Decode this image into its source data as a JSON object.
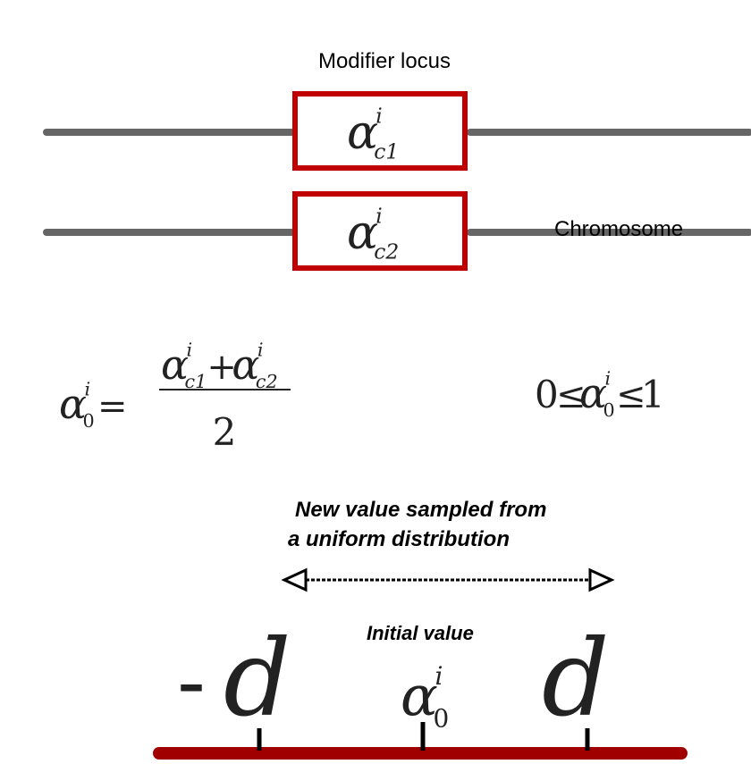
{
  "labels": {
    "modifier_locus": "Modifier locus",
    "chromosome": "Chromosome",
    "sampled": [
      "New value sampled from",
      "a uniform distribution"
    ],
    "initial": "Initial value"
  },
  "loci": [
    {
      "symbol": "α",
      "sup": "i",
      "sub": "c1"
    },
    {
      "symbol": "α",
      "sup": "i",
      "sub": "c2"
    }
  ],
  "formula": {
    "lhs": {
      "symbol": "α",
      "sup": "i",
      "sub": "0"
    },
    "equals": "=",
    "numerator": [
      {
        "symbol": "α",
        "sup": "i",
        "sub": "c1"
      },
      {
        "symbol": "α",
        "sup": "i",
        "sub": "c2"
      }
    ],
    "plus": "+",
    "denominator": "2"
  },
  "constraint": {
    "lower": "0",
    "leq": "≤",
    "var": {
      "symbol": "α",
      "sup": "i",
      "sub": "0"
    },
    "upper": "1"
  },
  "axis": {
    "left": {
      "sign": "-",
      "symbol": "d"
    },
    "center": {
      "symbol": "α",
      "sup": "i",
      "sub": "0"
    },
    "right": {
      "symbol": "d"
    }
  }
}
